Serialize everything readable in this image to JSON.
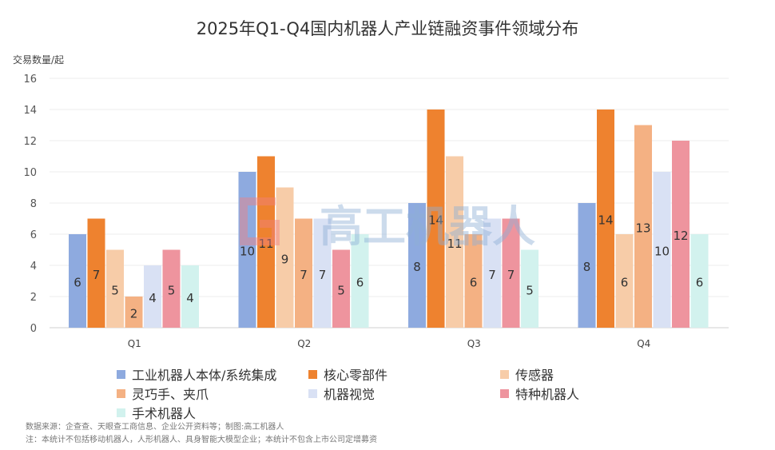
{
  "chart_data": {
    "type": "bar",
    "title": "2025年Q1-Q4国内机器人产业链融资事件领域分布",
    "ylabel": "交易数量/起",
    "xlabel": "",
    "ylim": [
      0,
      16
    ],
    "yticks": [
      0,
      2,
      4,
      6,
      8,
      10,
      12,
      14,
      16
    ],
    "grid": true,
    "legend_position": "bottom",
    "categories": [
      "Q1",
      "Q2",
      "Q3",
      "Q4"
    ],
    "series": [
      {
        "name": "工业机器人本体/系统集成",
        "color": "#8eaadf",
        "values": [
          6,
          10,
          8,
          8
        ]
      },
      {
        "name": "核心零部件",
        "color": "#ee822f",
        "values": [
          7,
          11,
          14,
          14
        ]
      },
      {
        "name": "传感器",
        "color": "#f7cca8",
        "values": [
          5,
          9,
          11,
          6
        ]
      },
      {
        "name": "灵巧手、夹爪",
        "color": "#f4b183",
        "values": [
          2,
          7,
          6,
          13
        ]
      },
      {
        "name": "机器视觉",
        "color": "#d9e1f4",
        "values": [
          4,
          7,
          7,
          10
        ]
      },
      {
        "name": "特种机器人",
        "color": "#ee949e",
        "values": [
          5,
          5,
          7,
          12
        ]
      },
      {
        "name": "手术机器人",
        "color": "#d2f2ee",
        "values": [
          4,
          6,
          5,
          6
        ]
      }
    ]
  },
  "watermark": "高工机器人",
  "notes": {
    "source": "数据来源：企查查、天眼查工商信息、企业公开资料等；制图:高工机器人",
    "note": "注：本统计不包括移动机器人，人形机器人、具身智能大模型企业；本统计不包含上市公司定增募资"
  }
}
